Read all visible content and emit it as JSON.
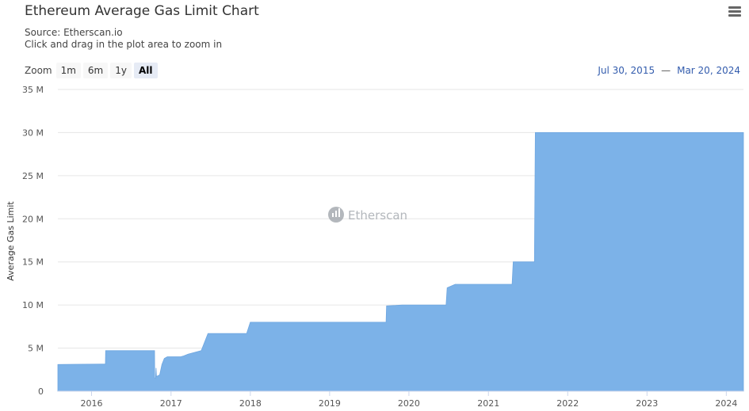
{
  "header": {
    "title": "Ethereum Average Gas Limit Chart",
    "source": "Source: Etherscan.io",
    "hint": "Click and drag in the plot area to zoom in"
  },
  "zoom": {
    "label": "Zoom",
    "buttons": [
      "1m",
      "6m",
      "1y",
      "All"
    ],
    "active": "All"
  },
  "range": {
    "from": "Jul 30, 2015",
    "separator": "—",
    "to": "Mar 20, 2024"
  },
  "watermark": "Etherscan",
  "menu_icon": "hamburger-menu-icon",
  "colors": {
    "area": "#7cb2e8",
    "grid": "#e6e6e6",
    "range_text": "#335cad"
  },
  "chart_data": {
    "type": "area",
    "title": "Ethereum Average Gas Limit Chart",
    "ylabel": "Average Gas Limit",
    "xlabel": "",
    "ylim": [
      0,
      35000000
    ],
    "xlim": [
      "2015-07-30",
      "2024-03-20"
    ],
    "grid": true,
    "yticks": [
      {
        "value": 0,
        "label": "0"
      },
      {
        "value": 5000000,
        "label": "5 M"
      },
      {
        "value": 10000000,
        "label": "10 M"
      },
      {
        "value": 15000000,
        "label": "15 M"
      },
      {
        "value": 20000000,
        "label": "20 M"
      },
      {
        "value": 25000000,
        "label": "25 M"
      },
      {
        "value": 30000000,
        "label": "30 M"
      },
      {
        "value": 35000000,
        "label": "35 M"
      }
    ],
    "xticks": [
      {
        "year": 2016,
        "label": "2016"
      },
      {
        "year": 2017,
        "label": "2017"
      },
      {
        "year": 2018,
        "label": "2018"
      },
      {
        "year": 2019,
        "label": "2019"
      },
      {
        "year": 2020,
        "label": "2020"
      },
      {
        "year": 2021,
        "label": "2021"
      },
      {
        "year": 2022,
        "label": "2022"
      },
      {
        "year": 2023,
        "label": "2023"
      },
      {
        "year": 2024,
        "label": "2024"
      }
    ],
    "points": [
      [
        "2015-07-30",
        3100000
      ],
      [
        "2015-10-20",
        3120000
      ],
      [
        "2016-03-05",
        3140000
      ],
      [
        "2016-03-06",
        4700000
      ],
      [
        "2016-10-17",
        4700000
      ],
      [
        "2016-10-18",
        1500000
      ],
      [
        "2016-10-22",
        1500000
      ],
      [
        "2016-10-24",
        2700000
      ],
      [
        "2016-10-26",
        1700000
      ],
      [
        "2016-11-10",
        1900000
      ],
      [
        "2016-11-20",
        3100000
      ],
      [
        "2016-12-01",
        3800000
      ],
      [
        "2016-12-15",
        4000000
      ],
      [
        "2017-02-15",
        4000000
      ],
      [
        "2017-03-01",
        4100000
      ],
      [
        "2017-03-20",
        4300000
      ],
      [
        "2017-05-20",
        4700000
      ],
      [
        "2017-06-20",
        6700000
      ],
      [
        "2017-12-15",
        6700000
      ],
      [
        "2018-01-01",
        8000000
      ],
      [
        "2019-09-18",
        8000000
      ],
      [
        "2019-09-20",
        9900000
      ],
      [
        "2019-11-01",
        9950000
      ],
      [
        "2019-12-01",
        10000000
      ],
      [
        "2020-06-20",
        10000000
      ],
      [
        "2020-06-25",
        12000000
      ],
      [
        "2020-08-01",
        12400000
      ],
      [
        "2021-04-20",
        12400000
      ],
      [
        "2021-04-25",
        15000000
      ],
      [
        "2021-08-01",
        15000000
      ],
      [
        "2021-08-05",
        30000000
      ],
      [
        "2024-03-20",
        30000000
      ]
    ]
  }
}
